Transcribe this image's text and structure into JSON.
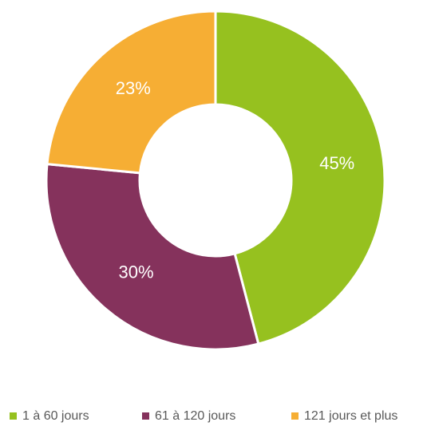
{
  "chart_data": {
    "type": "donut",
    "categories": [
      "1 à 60 jours",
      "61 à 120 jours",
      "121 jours et plus"
    ],
    "values": [
      45,
      30,
      23
    ],
    "value_labels": [
      "45%",
      "30%",
      "23%"
    ],
    "colors": [
      "#96c11f",
      "#85325c",
      "#f6ae34"
    ],
    "legend": "bottom"
  }
}
